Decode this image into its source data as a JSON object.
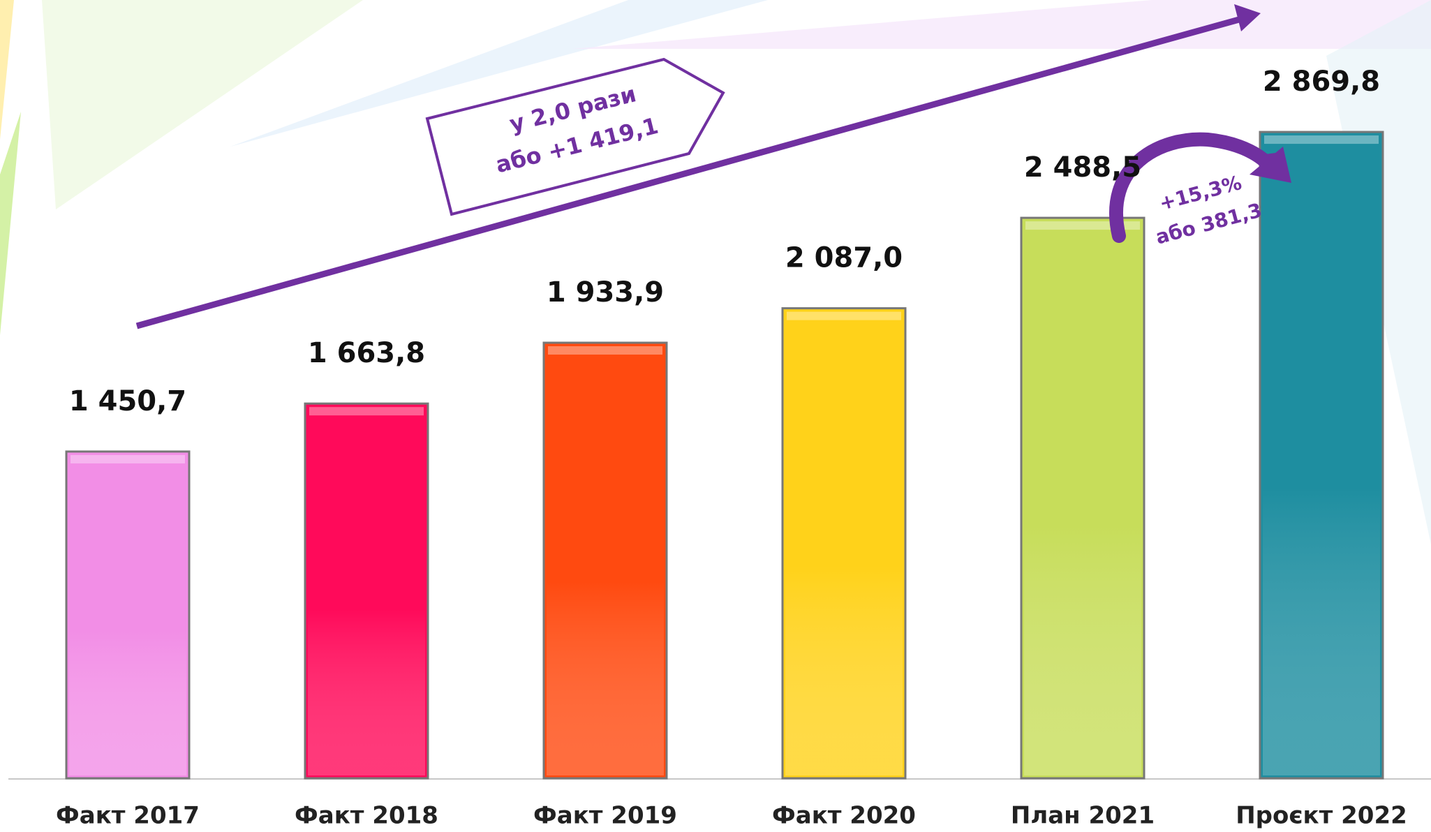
{
  "chart_data": {
    "type": "bar",
    "categories": [
      "Факт 2017",
      "Факт 2018",
      "Факт 2019",
      "Факт 2020",
      "План 2021",
      "Проєкт 2022"
    ],
    "values": [
      1450.7,
      1663.8,
      1933.9,
      2087.0,
      2488.5,
      2869.8
    ],
    "value_labels": [
      "1 450,7",
      "1 663,8",
      "1 933,9",
      "2 087,0",
      "2 488,5",
      "2 869,8"
    ],
    "colors": [
      "#f28ee6",
      "#ff0a5a",
      "#ff4a10",
      "#ffd21a",
      "#c7dd5a",
      "#1e8ea0"
    ],
    "ylim": [
      0,
      3400
    ],
    "annotations": [
      "у 2,0 рази",
      "або +1 419,1",
      "+15,3%",
      "або 381,3"
    ]
  }
}
